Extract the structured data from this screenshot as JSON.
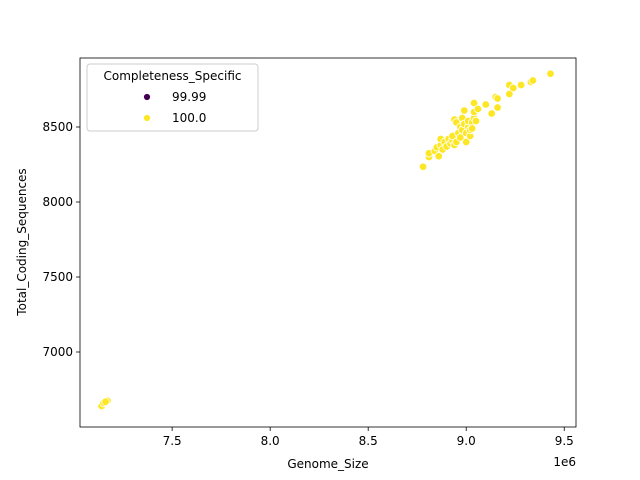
{
  "chart_data": {
    "type": "scatter",
    "title": "",
    "xlabel": "Genome_Size",
    "ylabel": "Total_Coding_Sequences",
    "x_offset_label": "1e6",
    "xlim": [
      7.03,
      9.56
    ],
    "ylim": [
      6500,
      8960
    ],
    "x_ticks": [
      7.5,
      8.0,
      8.5,
      9.0,
      9.5
    ],
    "x_tick_labels": [
      "7.5",
      "8.0",
      "8.5",
      "9.0",
      "9.5"
    ],
    "y_ticks": [
      7000,
      7500,
      8000,
      8500
    ],
    "y_tick_labels": [
      "7000",
      "7500",
      "8000",
      "8500"
    ],
    "grid": false,
    "legend": {
      "title": "Completeness_Specific",
      "placement": "top-left",
      "entries": [
        {
          "label": "99.99",
          "color": "#440154"
        },
        {
          "label": "100.0",
          "color": "#fde725"
        }
      ]
    },
    "series": [
      {
        "name": "99.99",
        "color": "#440154",
        "points": []
      },
      {
        "name": "100.0",
        "color": "#fde725",
        "points": [
          [
            7.14,
            6640
          ],
          [
            7.15,
            6660
          ],
          [
            7.17,
            6675
          ],
          [
            7.16,
            6668
          ],
          [
            8.78,
            8235
          ],
          [
            8.81,
            8300
          ],
          [
            8.81,
            8325
          ],
          [
            8.84,
            8340
          ],
          [
            8.85,
            8365
          ],
          [
            8.86,
            8305
          ],
          [
            8.87,
            8380
          ],
          [
            8.87,
            8420
          ],
          [
            8.88,
            8350
          ],
          [
            8.89,
            8400
          ],
          [
            8.9,
            8370
          ],
          [
            8.91,
            8420
          ],
          [
            8.92,
            8390
          ],
          [
            8.93,
            8410
          ],
          [
            8.93,
            8440
          ],
          [
            8.94,
            8380
          ],
          [
            8.94,
            8550
          ],
          [
            8.95,
            8530
          ],
          [
            8.95,
            8400
          ],
          [
            8.96,
            8460
          ],
          [
            8.97,
            8500
          ],
          [
            8.97,
            8430
          ],
          [
            8.98,
            8480
          ],
          [
            8.98,
            8560
          ],
          [
            8.99,
            8610
          ],
          [
            8.99,
            8520
          ],
          [
            9.0,
            8400
          ],
          [
            9.0,
            8460
          ],
          [
            9.01,
            8500
          ],
          [
            9.01,
            8540
          ],
          [
            9.02,
            8440
          ],
          [
            9.02,
            8480
          ],
          [
            9.03,
            8530
          ],
          [
            9.03,
            8490
          ],
          [
            9.04,
            8560
          ],
          [
            9.04,
            8600
          ],
          [
            9.04,
            8660
          ],
          [
            9.05,
            8540
          ],
          [
            9.06,
            8620
          ],
          [
            9.1,
            8650
          ],
          [
            9.13,
            8590
          ],
          [
            9.15,
            8700
          ],
          [
            9.16,
            8690
          ],
          [
            9.16,
            8630
          ],
          [
            9.22,
            8720
          ],
          [
            9.22,
            8780
          ],
          [
            9.24,
            8760
          ],
          [
            9.28,
            8780
          ],
          [
            9.33,
            8800
          ],
          [
            9.34,
            8810
          ],
          [
            9.43,
            8855
          ]
        ]
      }
    ]
  }
}
